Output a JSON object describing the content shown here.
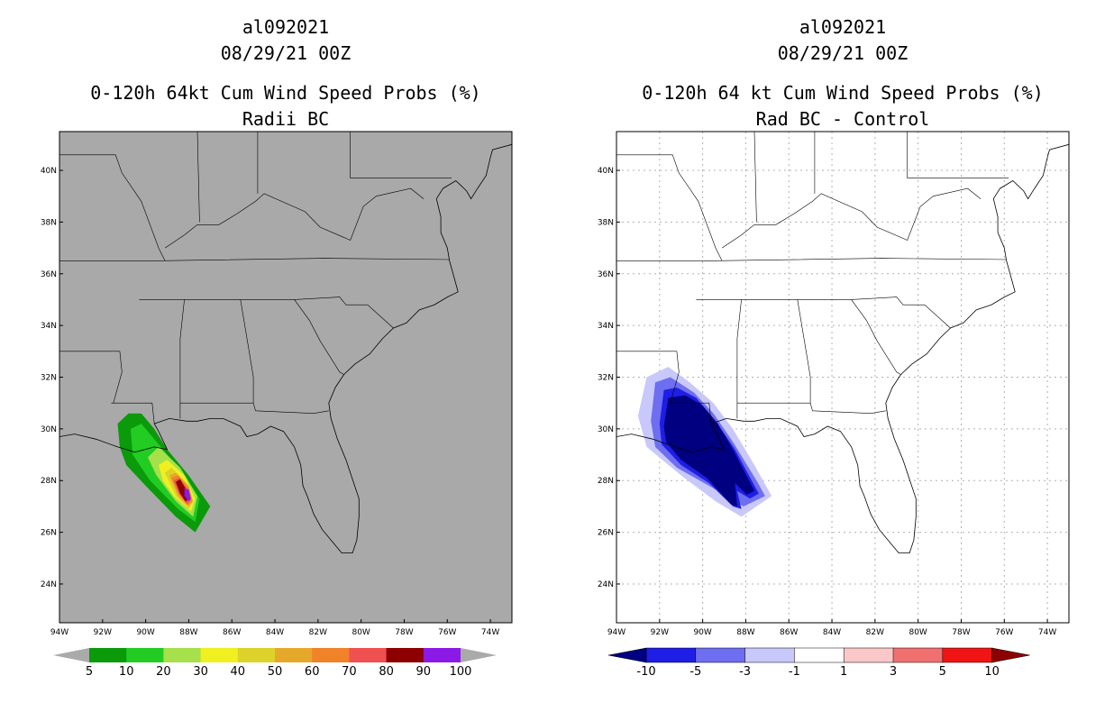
{
  "chart_data": [
    {
      "type": "heatmap",
      "storm_id": "al092021",
      "datetime": "08/29/21 00Z",
      "title": "0-120h 64kt Cum Wind Speed Probs (%)",
      "subtitle": "Radii BC",
      "xlim": [
        -94,
        -73
      ],
      "ylim": [
        22.5,
        41.5
      ],
      "x_ticks": [
        -94,
        -92,
        -90,
        -88,
        -86,
        -84,
        -82,
        -80,
        -78,
        -76,
        -74
      ],
      "x_tick_labels": [
        "94W",
        "92W",
        "90W",
        "88W",
        "86W",
        "84W",
        "82W",
        "80W",
        "78W",
        "76W",
        "74W"
      ],
      "y_ticks": [
        24,
        26,
        28,
        30,
        32,
        34,
        36,
        38,
        40
      ],
      "y_tick_labels": [
        "24N",
        "26N",
        "28N",
        "30N",
        "32N",
        "34N",
        "36N",
        "38N",
        "40N"
      ],
      "grid": false,
      "background": "#a9a9a9",
      "colorbar": {
        "levels": [
          "5",
          "10",
          "20",
          "30",
          "40",
          "50",
          "60",
          "70",
          "80",
          "90",
          "100"
        ],
        "colors": [
          "#aaaaaa",
          "#0a9a0a",
          "#22cc22",
          "#a6e04a",
          "#f0f020",
          "#dcd22a",
          "#e6a82a",
          "#f08228",
          "#f05050",
          "#8c0000",
          "#8c1ae6",
          "#aaaaaa"
        ]
      },
      "contours": [
        {
          "level": 5,
          "color": "#0a9a0a",
          "lonlat": [
            [
              -91.2,
              29.3
            ],
            [
              -91.3,
              30.2
            ],
            [
              -90.8,
              30.6
            ],
            [
              -90.2,
              30.6
            ],
            [
              -89.6,
              30.0
            ],
            [
              -89.0,
              29.2
            ],
            [
              -88.0,
              28.2
            ],
            [
              -87.0,
              27.0
            ],
            [
              -87.7,
              26.0
            ],
            [
              -88.6,
              26.6
            ],
            [
              -90.0,
              27.8
            ],
            [
              -90.9,
              28.6
            ]
          ]
        },
        {
          "level": 10,
          "color": "#22cc22",
          "lonlat": [
            [
              -90.6,
              29.0
            ],
            [
              -90.7,
              30.0
            ],
            [
              -90.2,
              30.2
            ],
            [
              -89.6,
              29.6
            ],
            [
              -88.6,
              28.6
            ],
            [
              -87.5,
              27.3
            ],
            [
              -87.7,
              26.4
            ],
            [
              -88.5,
              26.9
            ],
            [
              -89.8,
              28.0
            ]
          ]
        },
        {
          "level": 20,
          "color": "#a6e04a",
          "lonlat": [
            [
              -89.9,
              28.9
            ],
            [
              -89.4,
              29.3
            ],
            [
              -88.4,
              28.5
            ],
            [
              -87.6,
              27.4
            ],
            [
              -87.8,
              26.6
            ],
            [
              -88.6,
              27.2
            ],
            [
              -89.5,
              28.2
            ]
          ]
        },
        {
          "level": 30,
          "color": "#f0f020",
          "lonlat": [
            [
              -89.4,
              28.6
            ],
            [
              -89.0,
              28.8
            ],
            [
              -88.2,
              28.2
            ],
            [
              -87.7,
              27.3
            ],
            [
              -87.9,
              26.8
            ],
            [
              -88.7,
              27.4
            ],
            [
              -89.2,
              28.0
            ]
          ]
        },
        {
          "level": 40,
          "color": "#dcd22a",
          "lonlat": [
            [
              -89.1,
              28.3
            ],
            [
              -88.8,
              28.5
            ],
            [
              -88.1,
              27.9
            ],
            [
              -87.8,
              27.2
            ],
            [
              -88.0,
              26.9
            ],
            [
              -88.6,
              27.4
            ]
          ]
        },
        {
          "level": 50,
          "color": "#e6a82a",
          "lonlat": [
            [
              -88.9,
              28.2
            ],
            [
              -88.6,
              28.3
            ],
            [
              -88.0,
              27.8
            ],
            [
              -87.8,
              27.2
            ],
            [
              -88.0,
              27.0
            ],
            [
              -88.5,
              27.4
            ]
          ]
        },
        {
          "level": 60,
          "color": "#f08228",
          "lonlat": [
            [
              -88.8,
              28.1
            ],
            [
              -88.5,
              28.2
            ],
            [
              -88.0,
              27.7
            ],
            [
              -87.85,
              27.2
            ],
            [
              -88.05,
              27.05
            ],
            [
              -88.45,
              27.45
            ]
          ]
        },
        {
          "level": 70,
          "color": "#f05050",
          "lonlat": [
            [
              -88.7,
              28.0
            ],
            [
              -88.45,
              28.1
            ],
            [
              -88.0,
              27.6
            ],
            [
              -87.9,
              27.25
            ],
            [
              -88.1,
              27.1
            ],
            [
              -88.45,
              27.5
            ]
          ]
        },
        {
          "level": 80,
          "color": "#8c0000",
          "lonlat": [
            [
              -88.6,
              27.95
            ],
            [
              -88.4,
              28.05
            ],
            [
              -88.05,
              27.55
            ],
            [
              -87.95,
              27.3
            ],
            [
              -88.15,
              27.2
            ],
            [
              -88.4,
              27.5
            ]
          ]
        },
        {
          "level": 90,
          "color": "#8c1ae6",
          "lonlat": [
            [
              -88.2,
              27.7
            ],
            [
              -88.0,
              27.65
            ],
            [
              -87.9,
              27.3
            ],
            [
              -88.0,
              27.2
            ],
            [
              -88.2,
              27.4
            ]
          ]
        }
      ]
    },
    {
      "type": "heatmap",
      "storm_id": "al092021",
      "datetime": "08/29/21 00Z",
      "title": "0-120h 64 kt Cum Wind Speed Probs (%)",
      "subtitle": "Rad BC - Control",
      "xlim": [
        -94,
        -73
      ],
      "ylim": [
        22.5,
        41.5
      ],
      "x_ticks": [
        -94,
        -92,
        -90,
        -88,
        -86,
        -84,
        -82,
        -80,
        -78,
        -76,
        -74
      ],
      "x_tick_labels": [
        "94W",
        "92W",
        "90W",
        "88W",
        "86W",
        "84W",
        "82W",
        "80W",
        "78W",
        "76W",
        "74W"
      ],
      "y_ticks": [
        24,
        26,
        28,
        30,
        32,
        34,
        36,
        38,
        40
      ],
      "y_tick_labels": [
        "24N",
        "26N",
        "28N",
        "30N",
        "32N",
        "34N",
        "36N",
        "38N",
        "40N"
      ],
      "grid": true,
      "background": "#ffffff",
      "colorbar": {
        "levels": [
          "-10",
          "-5",
          "-3",
          "-1",
          "1",
          "3",
          "5",
          "10"
        ],
        "colors": [
          "#000080",
          "#1e1ee6",
          "#6e6ef0",
          "#c8c8fa",
          "#ffffff",
          "#fac8c8",
          "#f07070",
          "#f01414",
          "#8c0000"
        ]
      },
      "contours": [
        {
          "level": -1,
          "color": "#c8c8fa",
          "lonlat": [
            [
              -93.0,
              30.5
            ],
            [
              -92.6,
              32.0
            ],
            [
              -91.6,
              32.4
            ],
            [
              -90.6,
              31.8
            ],
            [
              -89.5,
              31.0
            ],
            [
              -88.6,
              30.0
            ],
            [
              -87.6,
              28.6
            ],
            [
              -86.8,
              27.4
            ],
            [
              -88.2,
              26.6
            ],
            [
              -89.4,
              27.2
            ],
            [
              -91.0,
              28.2
            ],
            [
              -92.6,
              29.3
            ]
          ]
        },
        {
          "level": -3,
          "color": "#6e6ef0",
          "lonlat": [
            [
              -92.4,
              30.3
            ],
            [
              -92.2,
              31.8
            ],
            [
              -91.5,
              32.0
            ],
            [
              -90.4,
              31.4
            ],
            [
              -89.5,
              30.6
            ],
            [
              -88.6,
              29.5
            ],
            [
              -87.5,
              28.0
            ],
            [
              -87.1,
              27.4
            ],
            [
              -88.1,
              27.0
            ],
            [
              -89.5,
              27.7
            ],
            [
              -91.2,
              28.5
            ],
            [
              -92.2,
              29.3
            ]
          ]
        },
        {
          "level": -5,
          "color": "#1e1ee6",
          "lonlat": [
            [
              -92.0,
              30.2
            ],
            [
              -91.8,
              31.5
            ],
            [
              -91.2,
              31.6
            ],
            [
              -90.3,
              31.2
            ],
            [
              -89.4,
              30.3
            ],
            [
              -88.5,
              29.2
            ],
            [
              -87.4,
              27.5
            ],
            [
              -87.8,
              27.3
            ],
            [
              -88.4,
              27.6
            ],
            [
              -88.2,
              26.9
            ],
            [
              -88.6,
              27.0
            ],
            [
              -89.7,
              27.9
            ],
            [
              -91.0,
              28.6
            ],
            [
              -91.9,
              29.4
            ]
          ]
        },
        {
          "level": -10,
          "color": "#000080",
          "lonlat": [
            [
              -91.8,
              30.1
            ],
            [
              -91.6,
              31.2
            ],
            [
              -90.8,
              31.3
            ],
            [
              -90.0,
              30.9
            ],
            [
              -89.3,
              30.2
            ],
            [
              -88.6,
              29.2
            ],
            [
              -87.6,
              27.6
            ],
            [
              -87.95,
              27.45
            ],
            [
              -88.5,
              27.9
            ],
            [
              -88.4,
              27.0
            ],
            [
              -88.7,
              27.1
            ],
            [
              -89.8,
              28.1
            ],
            [
              -91.0,
              28.8
            ],
            [
              -91.7,
              29.5
            ]
          ]
        }
      ]
    }
  ]
}
